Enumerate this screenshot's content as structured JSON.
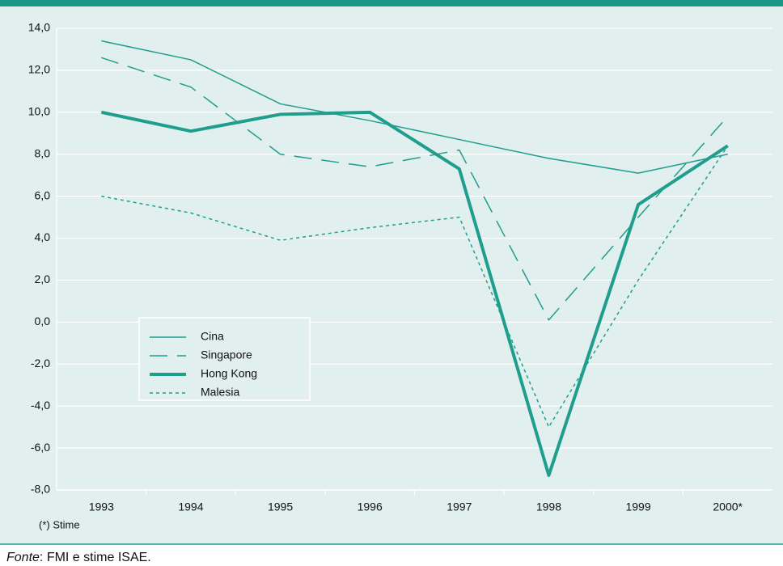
{
  "chart_data": {
    "type": "line",
    "categories": [
      "1993",
      "1994",
      "1995",
      "1996",
      "1997",
      "1998",
      "1999",
      "2000*"
    ],
    "series": [
      {
        "name": "Cina",
        "color": "#1f9e8e",
        "dash": "solid",
        "width": 1.5,
        "values": [
          13.4,
          12.5,
          10.4,
          9.6,
          8.7,
          7.8,
          7.1,
          8.0
        ]
      },
      {
        "name": "Singapore",
        "color": "#1f9e8e",
        "dash": "dashed",
        "width": 1.5,
        "values": [
          12.6,
          11.2,
          8.0,
          7.4,
          8.2,
          0.1,
          5.0,
          9.8
        ]
      },
      {
        "name": "Hong Kong",
        "color": "#1f9e8e",
        "dash": "solid",
        "width": 4,
        "values": [
          10.0,
          9.1,
          9.9,
          10.0,
          7.3,
          -7.3,
          5.6,
          8.4
        ]
      },
      {
        "name": "Malesia",
        "color": "#1f9e8e",
        "dash": "dotted",
        "width": 1.5,
        "values": [
          6.0,
          5.2,
          3.9,
          4.5,
          5.0,
          -5.0,
          2.0,
          8.4
        ]
      }
    ],
    "ylim": [
      -8,
      14
    ],
    "yticks": [
      {
        "value": -8,
        "label": "-8,0"
      },
      {
        "value": -6,
        "label": "-6,0"
      },
      {
        "value": -4,
        "label": "-4,0"
      },
      {
        "value": -2,
        "label": "-2,0"
      },
      {
        "value": 0,
        "label": "0,0"
      },
      {
        "value": 2,
        "label": "2,0"
      },
      {
        "value": 4,
        "label": "4,0"
      },
      {
        "value": 6,
        "label": "6,0"
      },
      {
        "value": 8,
        "label": "8,0"
      },
      {
        "value": 10,
        "label": "10,0"
      },
      {
        "value": 12,
        "label": "12,0"
      },
      {
        "value": 14,
        "label": "14,0"
      }
    ],
    "grid": true,
    "legend": "lower left",
    "note": "(*) Stime",
    "source_label": "Fonte",
    "source_text": ": FMI e stime ISAE."
  }
}
